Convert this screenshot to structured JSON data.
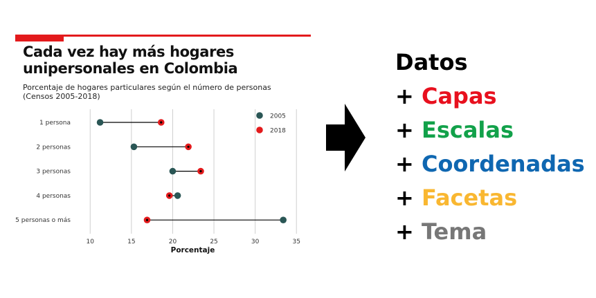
{
  "chart_data": {
    "type": "dumbbell",
    "title": "Cada vez hay más hogares unipersonales en Colombia",
    "subtitle_line1": "Porcentaje de hogares particulares según el número de personas",
    "subtitle_line2": "(Censos 2005-2018)",
    "xlabel": "Porcentaje",
    "ylabel": "",
    "xlim": [
      8.3,
      35.4
    ],
    "xticks": [
      10,
      15,
      20,
      25,
      30,
      35
    ],
    "grid": true,
    "legend_position": "top-right",
    "categories": [
      "1 persona",
      "2 personas",
      "3 personas",
      "4 personas",
      "5 personas o más"
    ],
    "series": [
      {
        "name": "2005",
        "color": "#2a5655",
        "values": [
          11.2,
          15.3,
          20.0,
          20.6,
          33.4
        ]
      },
      {
        "name": "2018",
        "color": "#e31a1c",
        "values": [
          18.6,
          21.9,
          23.4,
          19.6,
          16.9
        ]
      }
    ]
  },
  "steps": [
    {
      "text": "Datos",
      "color": "#000000",
      "plus": false
    },
    {
      "text": "Capas",
      "color": "#e8101e",
      "plus": true
    },
    {
      "text": "Escalas",
      "color": "#12a14a",
      "plus": true
    },
    {
      "text": "Coordenadas",
      "color": "#0f67b1",
      "plus": true
    },
    {
      "text": "Facetas",
      "color": "#f9b731",
      "plus": true
    },
    {
      "text": "Tema",
      "color": "#777777",
      "plus": true
    }
  ],
  "plus_symbol": "+ ",
  "colors": {
    "accent": "#e31a1c",
    "grid": "#cfcfcf",
    "connector": "#000000"
  },
  "icons": {
    "arrow": "right-arrow-icon"
  }
}
